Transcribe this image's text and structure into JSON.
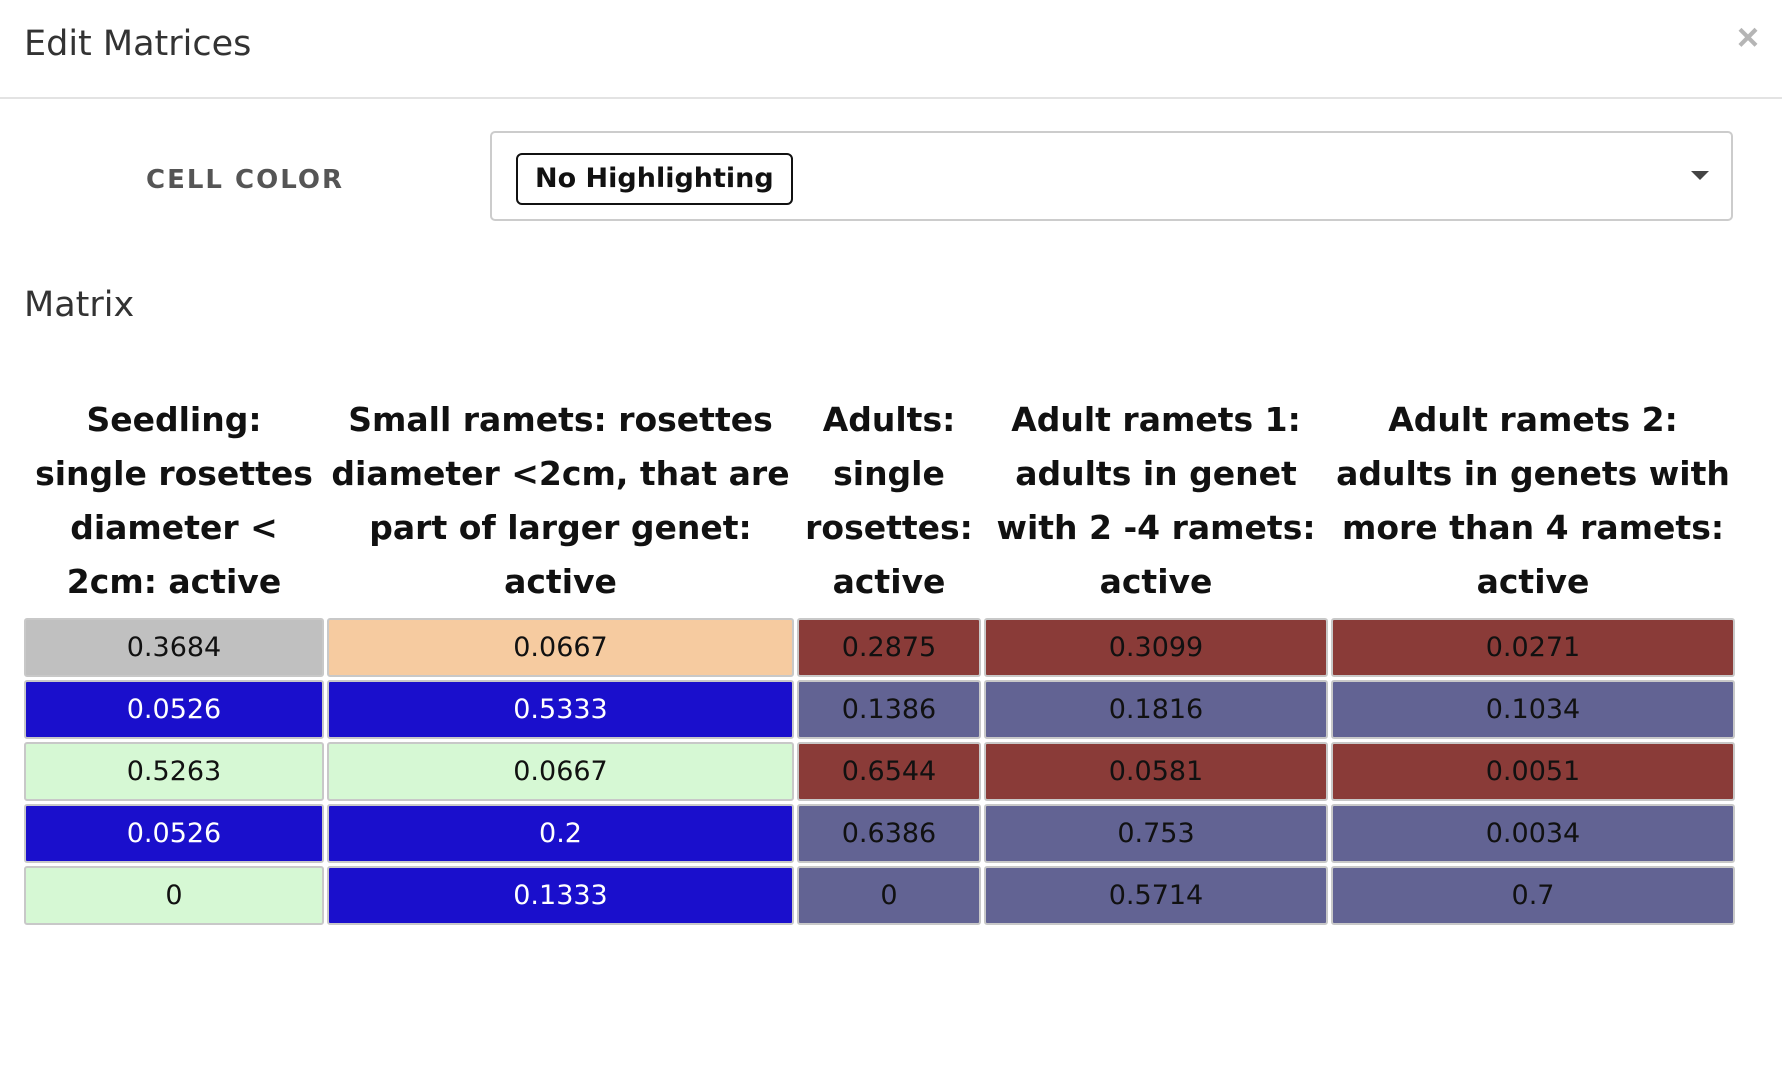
{
  "modal": {
    "title": "Edit Matrices",
    "close_label": "×"
  },
  "cell_color": {
    "label": "CELL COLOR",
    "selected": "No Highlighting"
  },
  "matrix": {
    "title": "Matrix",
    "headers": [
      "Seedling: single rosettes diameter < 2cm: active",
      "Small ramets: rosettes diameter <2cm, that are part of larger genet: active",
      "Adults: single rosettes: active",
      "Adult ramets 1: adults in genet with 2 -4 ramets: active",
      "Adult ramets 2: adults in genets with more than 4 ramets: active"
    ],
    "rows": [
      [
        "0.3684",
        "0.0667",
        "0.2875",
        "0.3099",
        "0.0271"
      ],
      [
        "0.0526",
        "0.5333",
        "0.1386",
        "0.1816",
        "0.1034"
      ],
      [
        "0.5263",
        "0.0667",
        "0.6544",
        "0.0581",
        "0.0051"
      ],
      [
        "0.0526",
        "0.2",
        "0.6386",
        "0.753",
        "0.0034"
      ],
      [
        "0",
        "0.1333",
        "0",
        "0.5714",
        "0.7"
      ]
    ],
    "colors": {
      "gray": "#c0c0c0",
      "peach": "#f6cba0",
      "dark_red": "#8a3b38",
      "blue": "#1a0fcc",
      "slate": "#626393",
      "mint": "#d6f8d4"
    }
  }
}
